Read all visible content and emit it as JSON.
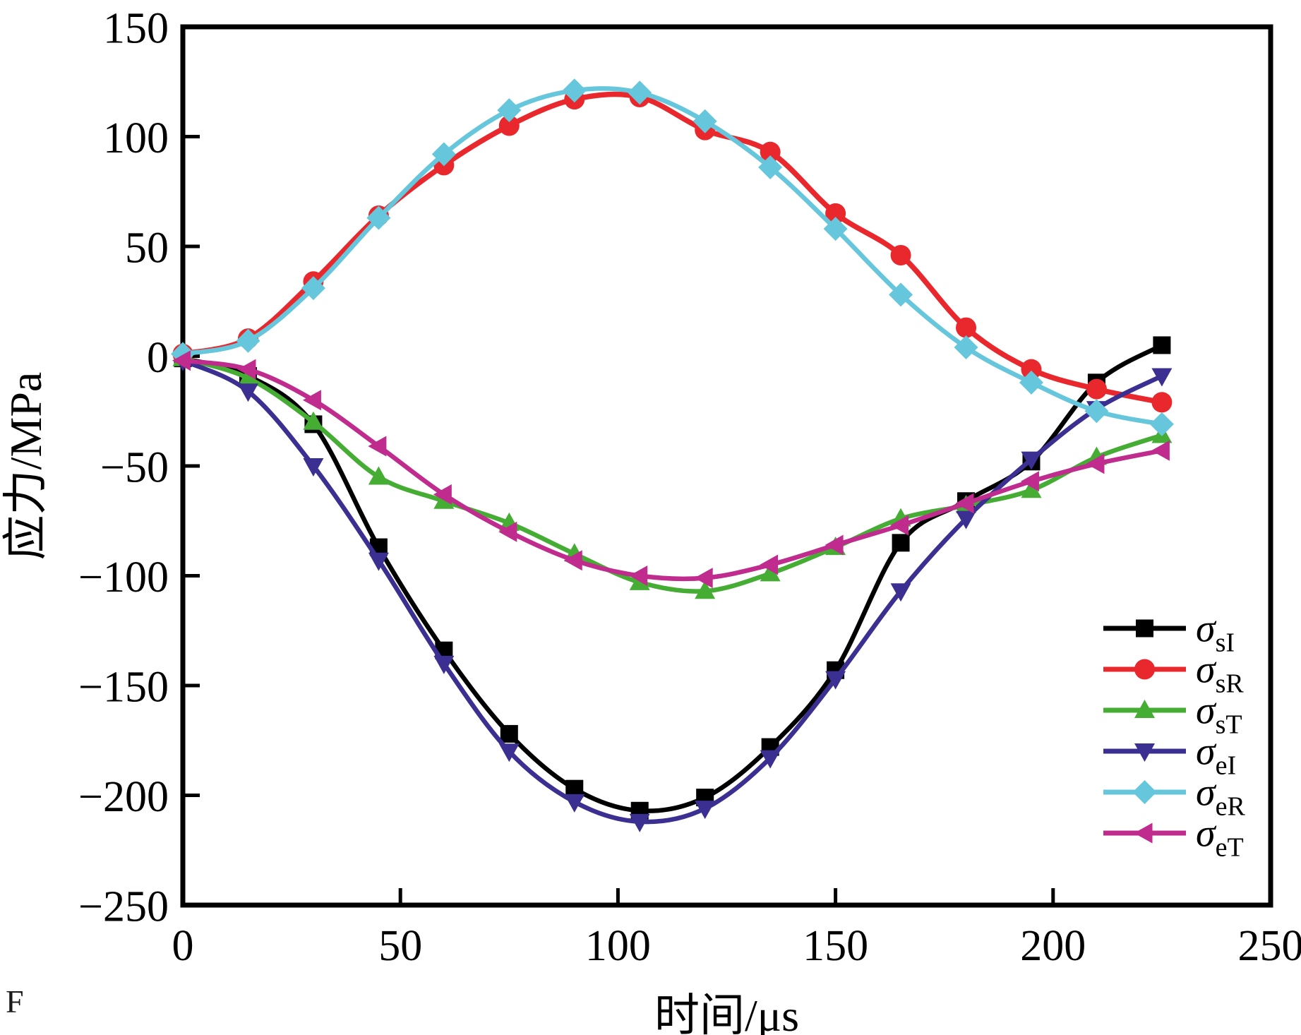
{
  "corner_fragment": "F",
  "chart_data": {
    "type": "line",
    "title": "",
    "xlabel": "时间/μs",
    "ylabel": "应力/MPa",
    "xlim": [
      0,
      250
    ],
    "ylim": [
      -250,
      150
    ],
    "x_ticks": [
      "0",
      "50",
      "100",
      "150",
      "200",
      "250"
    ],
    "y_ticks": [
      "150",
      "100",
      "50",
      "0",
      "−50",
      "−100",
      "−150",
      "−200",
      "−250"
    ],
    "y_tick_values": [
      150,
      100,
      50,
      0,
      -50,
      -100,
      -150,
      -200,
      -250
    ],
    "x_tick_values": [
      0,
      50,
      100,
      150,
      200,
      250
    ],
    "grid": false,
    "legend_position": "lower right",
    "x": [
      0,
      15,
      30,
      45,
      60,
      75,
      90,
      105,
      120,
      135,
      150,
      165,
      180,
      195,
      210,
      225
    ],
    "series": [
      {
        "name": "sigma-sI",
        "sigma": "σ",
        "sub": "sI",
        "color": "#000000",
        "marker": "square",
        "values": [
          -1,
          -9,
          -31,
          -87,
          -134,
          -172,
          -197,
          -207,
          -201,
          -178,
          -143,
          -85,
          -66,
          -48,
          -12,
          5
        ]
      },
      {
        "name": "sigma-sR",
        "sigma": "σ",
        "sub": "sR",
        "color": "#e8282d",
        "marker": "circle",
        "values": [
          1,
          8,
          34,
          64,
          87,
          105,
          117,
          118,
          103,
          93,
          65,
          46,
          13,
          -6,
          -15,
          -21
        ]
      },
      {
        "name": "sigma-sT",
        "sigma": "σ",
        "sub": "sT",
        "color": "#45ad33",
        "marker": "triangle-up",
        "values": [
          -1,
          -10,
          -30,
          -55,
          -66,
          -76,
          -90,
          -103,
          -107,
          -99,
          -87,
          -74,
          -68,
          -61,
          -46,
          -36
        ]
      },
      {
        "name": "sigma-eI",
        "sigma": "σ",
        "sub": "eI",
        "color": "#3b3092",
        "marker": "triangle-down",
        "values": [
          -2,
          -16,
          -50,
          -93,
          -140,
          -180,
          -203,
          -212,
          -206,
          -183,
          -147,
          -107,
          -74,
          -47,
          -24,
          -9
        ]
      },
      {
        "name": "sigma-eR",
        "sigma": "σ",
        "sub": "eR",
        "color": "#66c6dc",
        "marker": "diamond",
        "values": [
          1,
          7,
          31,
          63,
          92,
          112,
          121,
          120,
          107,
          86,
          58,
          28,
          4,
          -12,
          -25,
          -31
        ]
      },
      {
        "name": "sigma-eT",
        "sigma": "σ",
        "sub": "eT",
        "color": "#bf2c8d",
        "marker": "triangle-left",
        "values": [
          -2,
          -6,
          -20,
          -41,
          -63,
          -80,
          -93,
          -100,
          -101,
          -95,
          -86,
          -77,
          -67,
          -57,
          -49,
          -43
        ]
      }
    ]
  }
}
